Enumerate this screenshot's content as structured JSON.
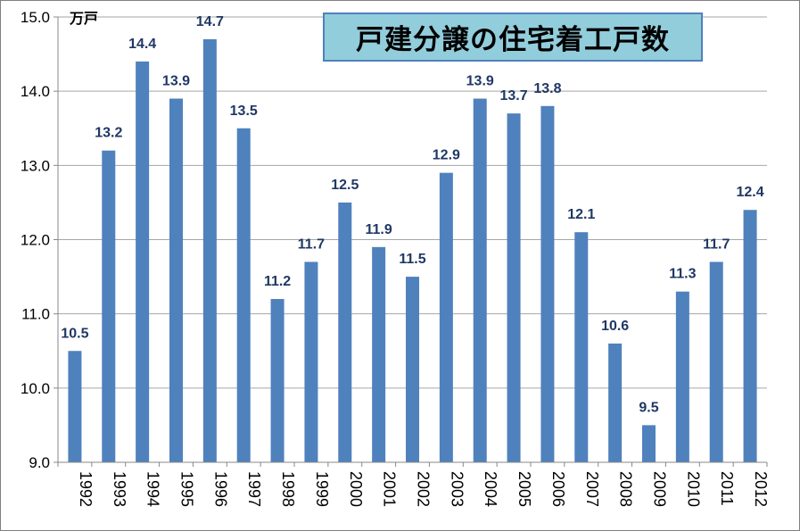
{
  "chart_data": {
    "type": "bar",
    "title": "戸建分譲の住宅着工戸数",
    "unit_label": "万戸",
    "categories": [
      "1992",
      "1993",
      "1994",
      "1995",
      "1996",
      "1997",
      "1998",
      "1999",
      "2000",
      "2001",
      "2002",
      "2003",
      "2004",
      "2005",
      "2006",
      "2007",
      "2008",
      "2009",
      "2010",
      "2011",
      "2012"
    ],
    "values": [
      10.5,
      13.2,
      14.4,
      13.9,
      14.7,
      13.5,
      11.2,
      11.7,
      12.5,
      11.9,
      11.5,
      12.9,
      13.9,
      13.7,
      13.8,
      12.1,
      10.6,
      9.5,
      11.3,
      11.7,
      12.4
    ],
    "ylim": [
      9.0,
      15.0
    ],
    "yticks": [
      "9.0",
      "10.0",
      "11.0",
      "12.0",
      "13.0",
      "14.0",
      "15.0"
    ],
    "grid": true,
    "colors": {
      "bar": "#4f81bd",
      "label": "#1f3864",
      "title_bg": "#92cddc",
      "title_border": "#4f81bd",
      "grid": "#a6a6a6"
    }
  }
}
